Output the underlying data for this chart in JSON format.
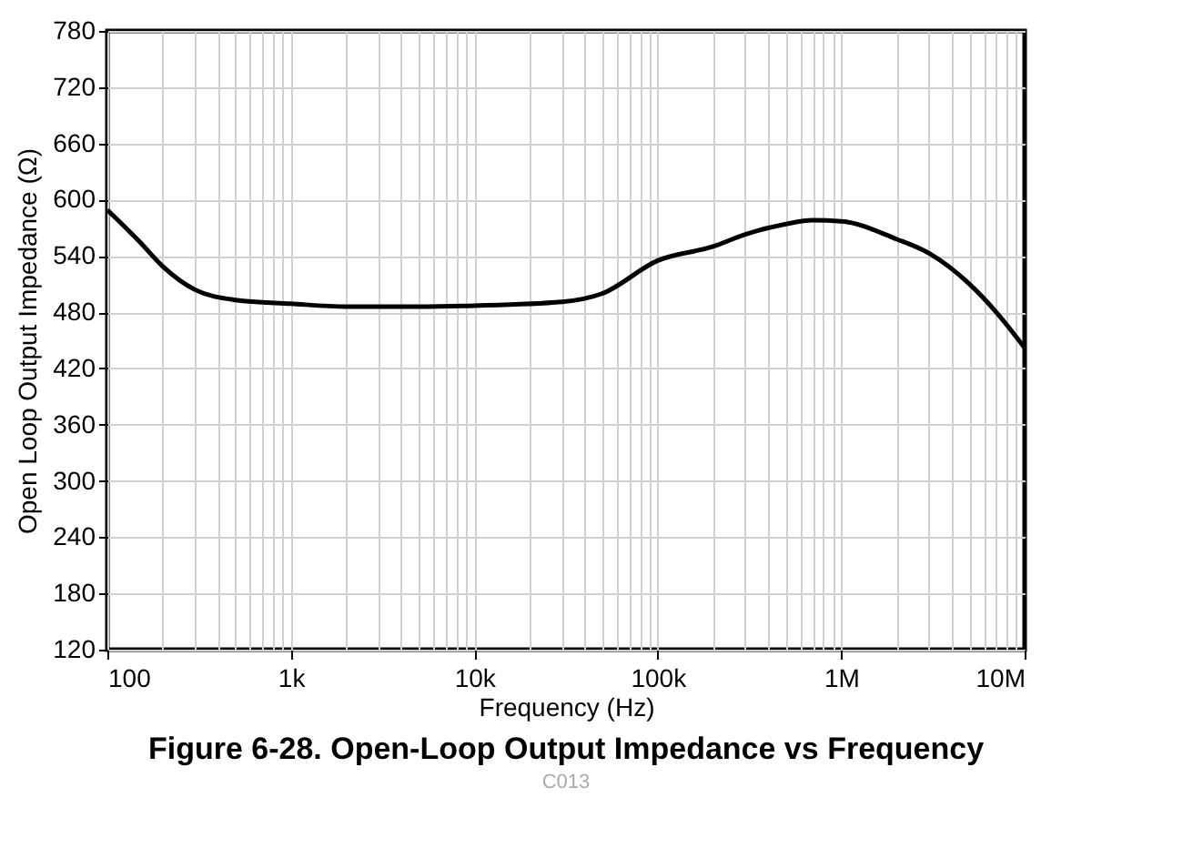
{
  "chart_data": {
    "type": "line",
    "title": "Figure 6-28. Open-Loop Output Impedance vs Frequency",
    "xlabel": "Frequency (Hz)",
    "ylabel": "Open Loop Output Impedance (Ω)",
    "annotations": [
      "C013"
    ],
    "x": [
      100,
      150,
      200,
      300,
      500,
      1000,
      2000,
      5000,
      10000,
      30000,
      50000,
      100000,
      200000,
      300000,
      500000,
      700000,
      1000000,
      2000000,
      3000000,
      5000000,
      7000000,
      10000000
    ],
    "series": [
      {
        "color": "#000000",
        "values": [
          589,
          555,
          529,
          504,
          493,
          489,
          486,
          486,
          487,
          491,
          500,
          535,
          550,
          563,
          574,
          578,
          577,
          558,
          543,
          510,
          480,
          442
        ]
      }
    ],
    "log": "x",
    "xlim": [
      100,
      10000000
    ],
    "xticks": [
      {
        "value": 100,
        "label": "100"
      },
      {
        "value": 1000,
        "label": "1k"
      },
      {
        "value": 10000,
        "label": "10k"
      },
      {
        "value": 100000,
        "label": "100k"
      },
      {
        "value": 1000000,
        "label": "1M"
      },
      {
        "value": 10000000,
        "label": "10M"
      }
    ],
    "ylim": [
      120,
      780
    ],
    "yticks": [
      120,
      180,
      240,
      300,
      360,
      420,
      480,
      540,
      600,
      660,
      720,
      780
    ],
    "grid": true,
    "legend": false,
    "marker": "none",
    "line_style": "solid"
  }
}
